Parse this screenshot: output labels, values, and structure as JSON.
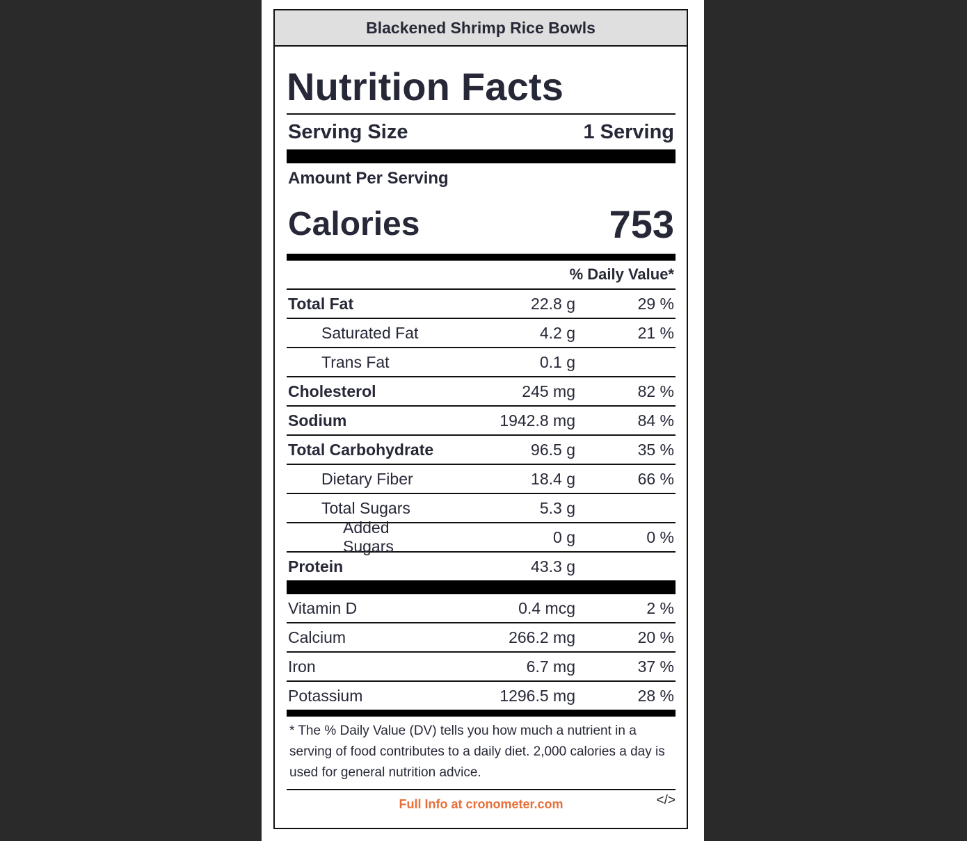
{
  "recipe_title": "Blackened Shrimp Rice Bowls",
  "label_title": "Nutrition Facts",
  "serving": {
    "label": "Serving Size",
    "value": "1 Serving"
  },
  "amount_per_serving": "Amount Per Serving",
  "calories": {
    "label": "Calories",
    "value": "753"
  },
  "daily_value_header": "% Daily Value*",
  "nutrients": [
    {
      "name": "Total Fat",
      "amount": "22.8 g",
      "dv": "29 %"
    },
    {
      "name": "Saturated Fat",
      "amount": "4.2 g",
      "dv": "21 %"
    },
    {
      "name": "Trans Fat",
      "amount": "0.1 g",
      "dv": ""
    },
    {
      "name": "Cholesterol",
      "amount": "245 mg",
      "dv": "82 %"
    },
    {
      "name": "Sodium",
      "amount": "1942.8 mg",
      "dv": "84 %"
    },
    {
      "name": "Total Carbohydrate",
      "amount": "96.5 g",
      "dv": "35 %"
    },
    {
      "name": "Dietary Fiber",
      "amount": "18.4 g",
      "dv": "66 %"
    },
    {
      "name": "Total Sugars",
      "amount": "5.3 g",
      "dv": ""
    },
    {
      "name": "Added Sugars",
      "amount": "0 g",
      "dv": "0 %"
    },
    {
      "name": "Protein",
      "amount": "43.3 g",
      "dv": ""
    }
  ],
  "micronutrients": [
    {
      "name": "Vitamin D",
      "amount": "0.4 mcg",
      "dv": "2 %"
    },
    {
      "name": "Calcium",
      "amount": "266.2 mg",
      "dv": "20 %"
    },
    {
      "name": "Iron",
      "amount": "6.7 mg",
      "dv": "37 %"
    },
    {
      "name": "Potassium",
      "amount": "1296.5 mg",
      "dv": "28 %"
    }
  ],
  "footnote": "* The % Daily Value (DV) tells you how much a nutrient in a serving of food contributes to a daily diet. 2,000 calories a day is used for general nutrition advice.",
  "footer": {
    "link": "Full Info at cronometer.com",
    "embed": "</>"
  },
  "colors": {
    "background": "#2a2a2a",
    "text": "#262837",
    "link": "#e86f3a",
    "header_bg": "#dfdfdf"
  }
}
